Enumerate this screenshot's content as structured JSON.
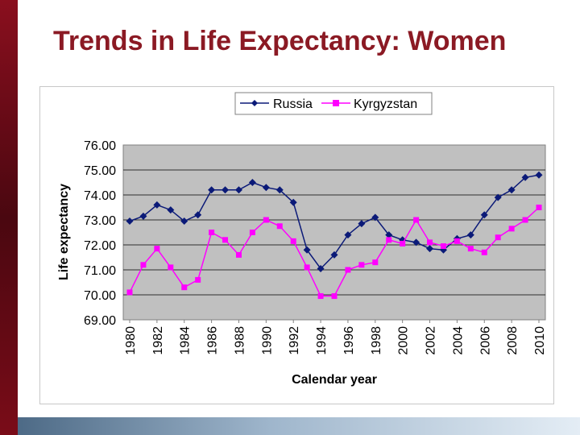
{
  "slide": {
    "title": "Trends in Life Expectancy: Women"
  },
  "colors": {
    "left_bar": "#6b0a16",
    "title": "#8b1a24",
    "plot_area": "#c0c0c0",
    "russia": "#0b1a78",
    "kyrgyzstan": "#ff00ff"
  },
  "chart_data": {
    "type": "line",
    "title": "",
    "xlabel": "Calendar year",
    "ylabel": "Life expectancy",
    "ylim": [
      69.0,
      76.0
    ],
    "y_ticks": [
      "69.00",
      "70.00",
      "71.00",
      "72.00",
      "73.00",
      "74.00",
      "75.00",
      "76.00"
    ],
    "x_ticks": [
      "1980",
      "1982",
      "1984",
      "1986",
      "1988",
      "1990",
      "1992",
      "1994",
      "1996",
      "1998",
      "2000",
      "2002",
      "2004",
      "2006",
      "2008",
      "2010"
    ],
    "grid": true,
    "legend": "top",
    "x": [
      1980,
      1981,
      1982,
      1983,
      1984,
      1985,
      1986,
      1987,
      1988,
      1989,
      1990,
      1991,
      1992,
      1993,
      1994,
      1995,
      1996,
      1997,
      1998,
      1999,
      2000,
      2001,
      2002,
      2003,
      2004,
      2005,
      2006,
      2007,
      2008,
      2009,
      2010
    ],
    "series": [
      {
        "name": "Russia",
        "marker": "diamond",
        "color": "#0b1a78",
        "values": [
          72.95,
          73.15,
          73.6,
          73.4,
          72.95,
          73.2,
          74.2,
          74.2,
          74.2,
          74.5,
          74.3,
          74.2,
          73.7,
          71.8,
          71.05,
          71.6,
          72.4,
          72.85,
          73.1,
          72.4,
          72.2,
          72.1,
          71.85,
          71.8,
          72.25,
          72.4,
          73.2,
          73.9,
          74.2,
          74.7,
          74.8
        ]
      },
      {
        "name": "Kyrgyzstan",
        "marker": "square",
        "color": "#ff00ff",
        "values": [
          70.1,
          71.2,
          71.85,
          71.1,
          70.3,
          70.6,
          72.5,
          72.2,
          71.6,
          72.5,
          73.0,
          72.75,
          72.15,
          71.1,
          69.95,
          69.95,
          71.0,
          71.2,
          71.3,
          72.2,
          72.05,
          73.0,
          72.1,
          71.95,
          72.15,
          71.85,
          71.7,
          72.3,
          72.65,
          73.0,
          73.5
        ]
      }
    ]
  }
}
